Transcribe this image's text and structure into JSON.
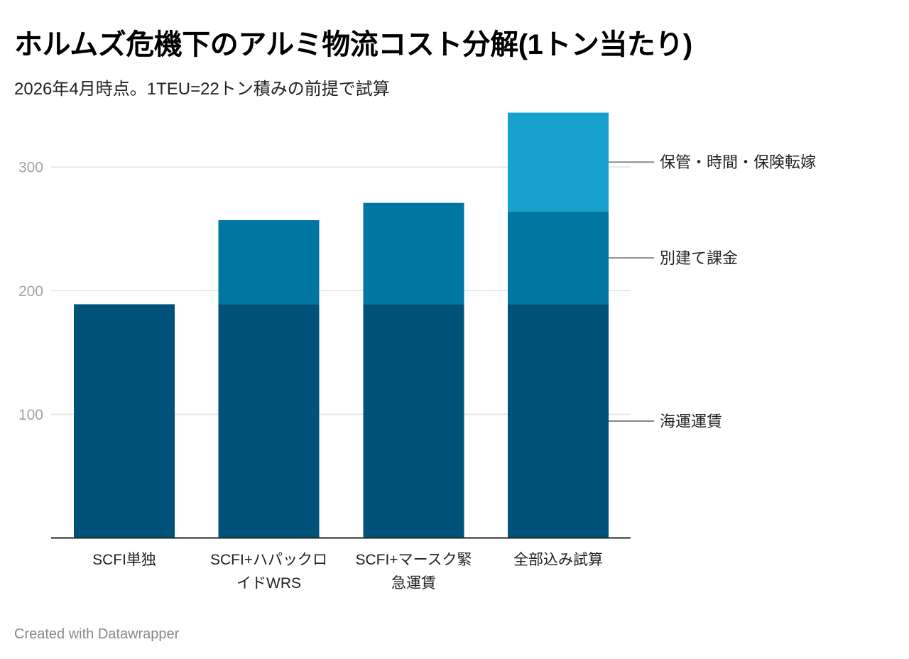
{
  "header": {
    "title": "ホルムズ危機下のアルミ物流コスト分解(1トン当たり)",
    "subtitle": "2026年4月時点。1TEU=22トン積みの前提で試算"
  },
  "footer": {
    "credit": "Created with Datawrapper"
  },
  "chart_data": {
    "type": "bar",
    "stacked": true,
    "title": "ホルムズ危機下のアルミ物流コスト分解(1トン当たり)",
    "subtitle": "2026年4月時点。1TEU=22トン積みの前提で試算",
    "xlabel": "",
    "ylabel": "",
    "ylim": [
      0,
      344
    ],
    "yticks": [
      "100",
      "200",
      "300"
    ],
    "ytick_values": [
      100,
      200,
      300
    ],
    "grid": true,
    "categories": [
      {
        "lines": [
          "SCFI単独"
        ]
      },
      {
        "lines": [
          "SCFI+ハパックロ",
          "イドWRS"
        ]
      },
      {
        "lines": [
          "SCFI+マースク緊",
          "急運賃"
        ]
      },
      {
        "lines": [
          "全部込み試算"
        ]
      }
    ],
    "series": [
      {
        "name": "海運運賃",
        "color": "#00527a",
        "values": [
          189,
          189,
          189,
          189
        ]
      },
      {
        "name": "別建て課金",
        "color": "#0077a3",
        "values": [
          0,
          68,
          82,
          75
        ]
      },
      {
        "name": "保管・時間・保険転嫁",
        "color": "#18a1cd",
        "values": [
          0,
          0,
          0,
          80
        ]
      }
    ],
    "legend": "direct-labels-right"
  }
}
